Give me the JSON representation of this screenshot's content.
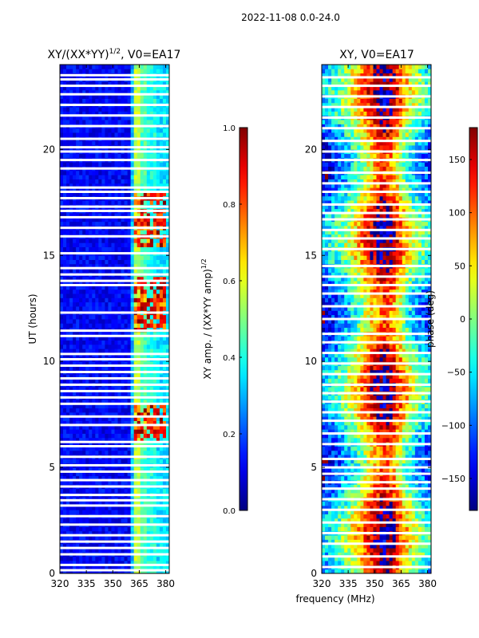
{
  "figure_title": "2022-11-08 0.0-24.0",
  "shared_xlabel": "frequency (MHz)",
  "chart_data": [
    {
      "type": "heatmap",
      "title_prefix": "XY/(XX*YY)",
      "title_exp": "1/2",
      "title_suffix": ", V0=EA17",
      "xlabel": "",
      "ylabel": "UT (hours)",
      "xlim": [
        320,
        382
      ],
      "ylim": [
        0,
        24
      ],
      "xticks": [
        320,
        335,
        350,
        365,
        380
      ],
      "yticks": [
        0,
        5,
        10,
        15,
        20
      ],
      "colorbar": {
        "label_prefix": "XY amp. / (XX*YY amp)",
        "label_exp": "1/2",
        "range": [
          0.0,
          1.0
        ],
        "ticks": [
          "0.0",
          "0.2",
          "0.4",
          "0.6",
          "0.8",
          "1.0"
        ],
        "colormap": "jet"
      },
      "bands": [
        {
          "from_mhz": 320,
          "to_mhz": 360,
          "level": 0.12
        },
        {
          "from_mhz": 360,
          "to_mhz": 362,
          "level": 0.3
        },
        {
          "from_mhz": 362,
          "to_mhz": 366,
          "level": 0.55
        },
        {
          "from_mhz": 366,
          "to_mhz": 369,
          "level": 0.45
        },
        {
          "from_mhz": 369,
          "to_mhz": 375,
          "level": 0.4
        },
        {
          "from_mhz": 375,
          "to_mhz": 382,
          "level": 0.35
        }
      ],
      "high_correlation_hours": [
        [
          6.3,
          7.9
        ],
        [
          11.5,
          14.0
        ],
        [
          15.4,
          17.2
        ],
        [
          17.5,
          18.0
        ]
      ],
      "flagged_hours": [
        0.15,
        0.4,
        0.9,
        1.2,
        1.5,
        1.8,
        2.3,
        2.7,
        3.2,
        3.45,
        3.7,
        4.1,
        4.4,
        4.8,
        5.1,
        5.5,
        6.0,
        6.2,
        7.0,
        7.4,
        8.0,
        8.3,
        8.6,
        8.9,
        9.2,
        9.5,
        9.8,
        10.1,
        10.35,
        11.2,
        11.45,
        12.3,
        13.6,
        13.8,
        14.1,
        14.4,
        15.1,
        15.9,
        16.3,
        16.8,
        17.1,
        17.3,
        17.7,
        18.0,
        18.2,
        19.1,
        19.5,
        19.9,
        20.1,
        20.5,
        21.1,
        21.6,
        22.1,
        22.6,
        23.0,
        23.3,
        23.5
      ]
    },
    {
      "type": "heatmap",
      "title": "XY, V0=EA17",
      "xlabel": "",
      "ylabel": "",
      "xlim": [
        320,
        382
      ],
      "ylim": [
        0,
        24
      ],
      "xticks": [
        320,
        335,
        350,
        365,
        380
      ],
      "yticks": [
        0,
        5,
        10,
        15,
        20
      ],
      "colorbar": {
        "label": "phase (deg)",
        "range": [
          -180,
          180
        ],
        "ticks": [
          "150",
          "100",
          "50",
          "0",
          "−50",
          "−100",
          "−150"
        ],
        "tick_values": [
          150,
          100,
          50,
          0,
          -50,
          -100,
          -150
        ],
        "colormap": "jet"
      },
      "phase_profile": {
        "freq_mhz": [
          320,
          330,
          340,
          350,
          355,
          360,
          365,
          370,
          375,
          382
        ],
        "phase_deg": [
          -110,
          -60,
          20,
          120,
          160,
          130,
          60,
          0,
          -40,
          -80
        ]
      },
      "flagged_hours": [
        0.3,
        0.8,
        1.4,
        1.9,
        2.4,
        3.0,
        3.5,
        4.0,
        4.3,
        4.7,
        5.0,
        5.4,
        6.1,
        6.6,
        7.2,
        7.6,
        8.1,
        8.5,
        8.9,
        9.4,
        9.9,
        10.4,
        10.9,
        11.3,
        12.0,
        12.6,
        13.2,
        13.6,
        14.0,
        14.5,
        15.3,
        15.8,
        16.2,
        16.7,
        17.0,
        17.4,
        18.0,
        18.4,
        18.9,
        19.5,
        19.9,
        20.4,
        21.0,
        21.5,
        22.0,
        22.5,
        23.0,
        23.4
      ]
    }
  ]
}
